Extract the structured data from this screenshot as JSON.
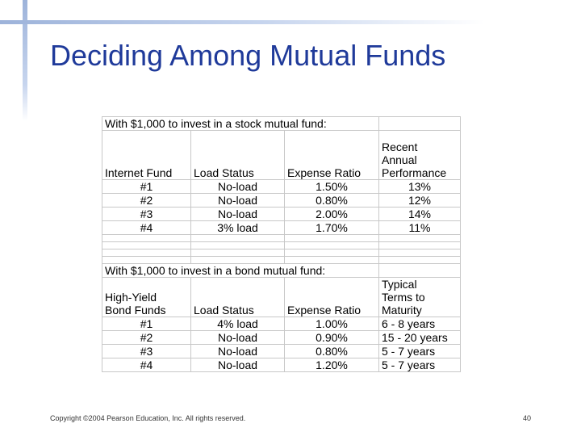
{
  "title": "Deciding Among Mutual Funds",
  "stock": {
    "heading": "With $1,000 to invest in a stock mutual fund:",
    "headers": {
      "fund": "Internet Fund",
      "load": "Load Status",
      "expense": "Expense Ratio",
      "extra": [
        "Recent",
        "Annual",
        "Performance"
      ]
    },
    "rows": [
      {
        "fund": "#1",
        "load": "No-load",
        "expense": "1.50%",
        "extra": "13%"
      },
      {
        "fund": "#2",
        "load": "No-load",
        "expense": "0.80%",
        "extra": "12%"
      },
      {
        "fund": "#3",
        "load": "No-load",
        "expense": "2.00%",
        "extra": "14%"
      },
      {
        "fund": "#4",
        "load": "3% load",
        "expense": "1.70%",
        "extra": "11%"
      }
    ]
  },
  "bond": {
    "heading": "With $1,000 to invest in a bond mutual fund:",
    "headers": {
      "fund": [
        "High-Yield",
        "Bond Funds"
      ],
      "load": "Load Status",
      "expense": "Expense Ratio",
      "extra": [
        "Typical",
        "Terms to",
        "Maturity"
      ]
    },
    "rows": [
      {
        "fund": "#1",
        "load": "4% load",
        "expense": "1.00%",
        "extra": "6 - 8 years"
      },
      {
        "fund": "#2",
        "load": "No-load",
        "expense": "0.90%",
        "extra": "15 - 20 years"
      },
      {
        "fund": "#3",
        "load": "No-load",
        "expense": "0.80%",
        "extra": "5 - 7 years"
      },
      {
        "fund": "#4",
        "load": "No-load",
        "expense": "1.20%",
        "extra": "5 - 7 years"
      }
    ]
  },
  "footer": "Copyright ©2004 Pearson Education, Inc. All rights reserved.",
  "page_number": "40"
}
